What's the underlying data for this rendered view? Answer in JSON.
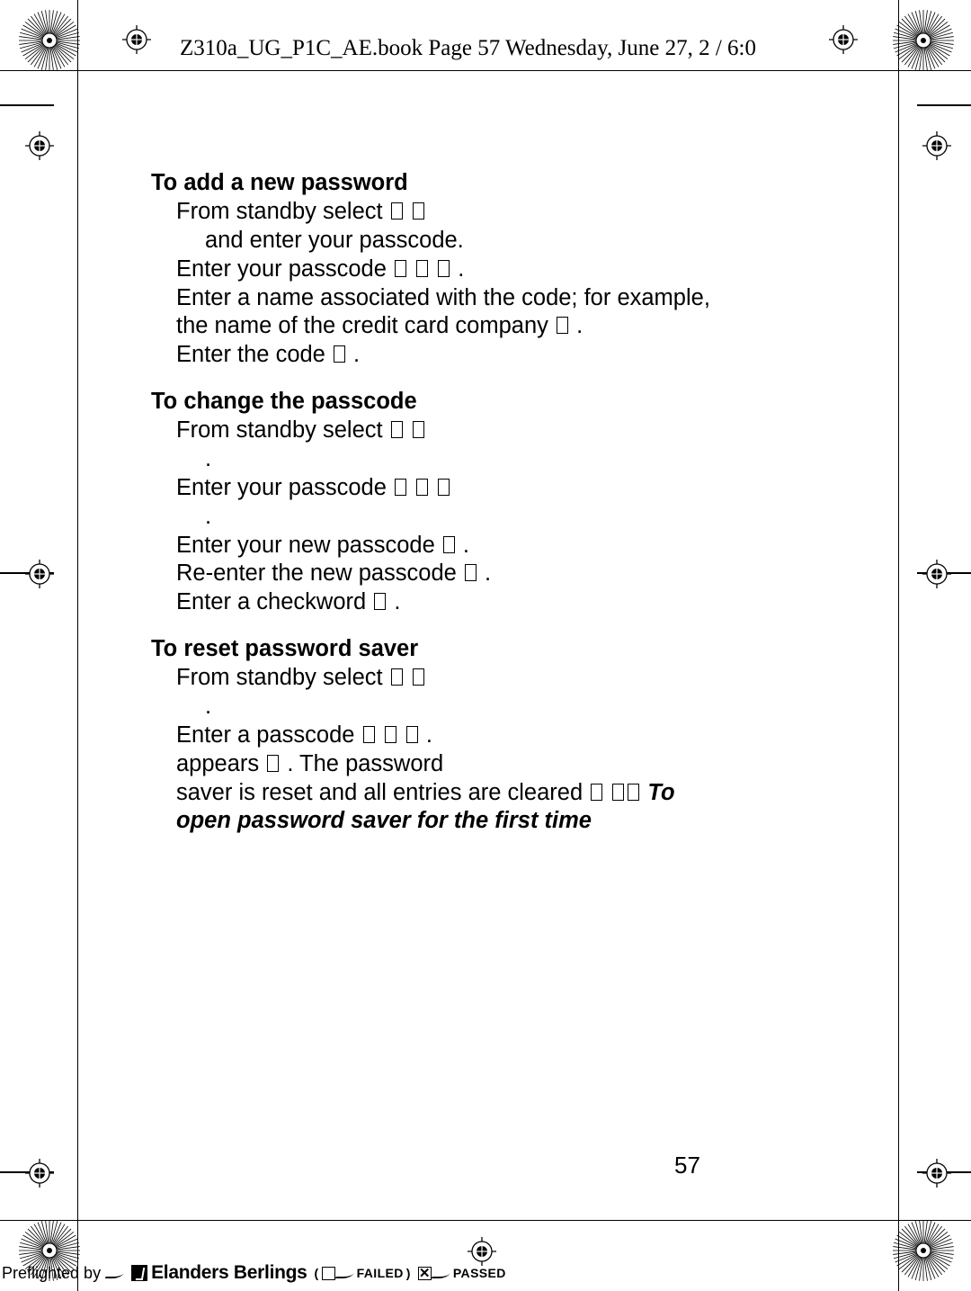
{
  "header": {
    "text": "Z310a_UG_P1C_AE.book  Page 57  Wednesday, June 27, 2     /  6:0"
  },
  "page_number": "57",
  "sections": [
    {
      "heading": "To add a new password",
      "steps": [
        "From standby select         ▯              ▯",
        "         and enter your passcode.",
        "Enter your passcode ▯              ▯                  ▯       .",
        "Enter a name associated with the code; for example,",
        "the name of the credit card company ▯                 .",
        "Enter the code ▯          ."
      ]
    },
    {
      "heading": "To change the passcode",
      "steps": [
        "From standby select         ▯              ▯",
        "     .",
        "Enter your passcode ▯              ▯         ▯",
        "            .",
        "Enter your new passcode ▯              .",
        "Re-enter the new passcode ▯               .",
        "Enter a checkword ▯           ."
      ]
    },
    {
      "heading": "To reset password saver",
      "steps": [
        "From standby select         ▯              ▯",
        "     .",
        "Enter a passcode ▯              ▯          ▯        ."
      ],
      "tail_plain1": "                                  appears ▯       . The password",
      "tail_plain2": "saver is reset and all entries are cleared ▯  ▯▯ ",
      "tail_bi": "To open password saver for the first time"
    }
  ],
  "preflight": {
    "by": "Preflighted by",
    "vendor": "Elanders Berlings",
    "failed": "FAILED",
    "passed": "PASSED"
  }
}
